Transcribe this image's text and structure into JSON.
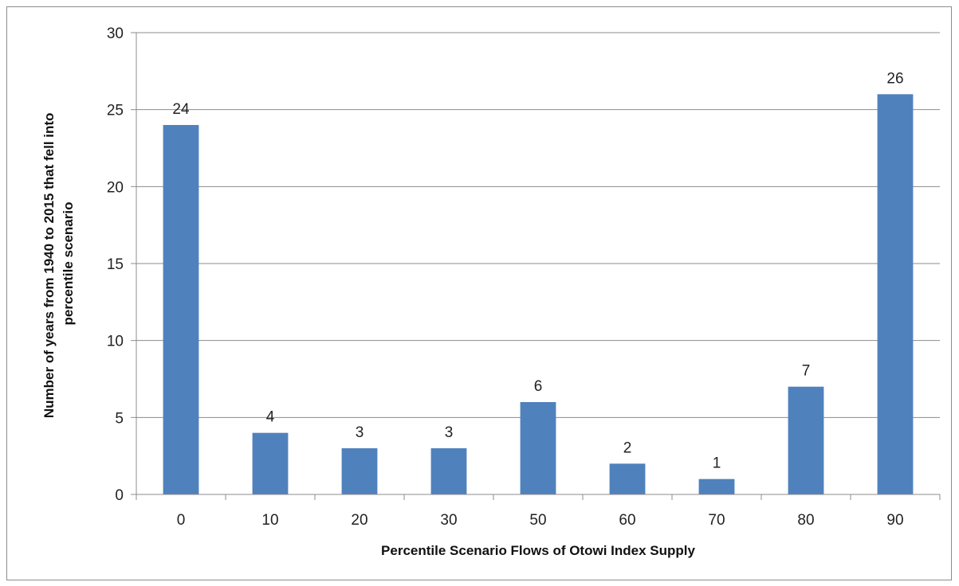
{
  "chart_data": {
    "type": "bar",
    "title": "",
    "categories": [
      "0",
      "10",
      "20",
      "30",
      "50",
      "60",
      "70",
      "80",
      "90"
    ],
    "values": [
      24,
      4,
      3,
      3,
      6,
      2,
      1,
      7,
      26
    ],
    "data_labels": [
      "24",
      "4",
      "3",
      "3",
      "6",
      "2",
      "1",
      "7",
      "26"
    ],
    "xlabel": "Percentile Scenario Flows of Otowi Index Supply",
    "ylabel_lines": [
      "Number of years from 1940 to 2015 that fell into",
      "percentile scenario"
    ],
    "ylim": [
      0,
      30
    ],
    "yticks": [
      "0",
      "5",
      "10",
      "15",
      "20",
      "25",
      "30"
    ],
    "grid": true,
    "legend": "none",
    "bar_color": "#4f81bd",
    "grid_color": "#8c8c8c"
  }
}
